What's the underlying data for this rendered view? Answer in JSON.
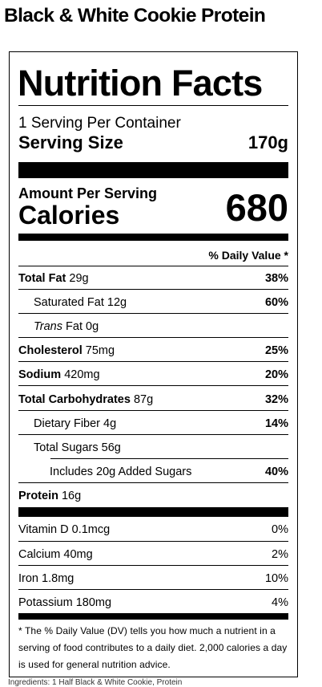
{
  "product_title": "Black & White Cookie Protein",
  "label": {
    "title": "Nutrition Facts",
    "servings_per_container": "1 Serving Per Container",
    "serving_size_label": "Serving Size",
    "serving_size_value": "170g",
    "amount_per_serving": "Amount Per Serving",
    "calories_label": "Calories",
    "calories_value": "680",
    "daily_value_header": "% Daily Value *",
    "nutrients": [
      {
        "name": "Total Fat",
        "amount": "29g",
        "dv": "38%"
      },
      {
        "name": "Saturated Fat",
        "amount": "12g",
        "dv": "60%"
      },
      {
        "name": "Trans",
        "name_suffix": "Fat",
        "amount": "0g",
        "dv": ""
      },
      {
        "name": "Cholesterol",
        "amount": "75mg",
        "dv": "25%"
      },
      {
        "name": "Sodium",
        "amount": "420mg",
        "dv": "20%"
      },
      {
        "name": "Total Carbohydrates",
        "amount": "87g",
        "dv": "32%"
      },
      {
        "name": "Dietary Fiber",
        "amount": "4g",
        "dv": "14%"
      },
      {
        "name": "Total Sugars",
        "amount": "56g",
        "dv": ""
      },
      {
        "name": "Includes 20g Added Sugars",
        "amount": "",
        "dv": "40%"
      },
      {
        "name": "Protein",
        "amount": "16g",
        "dv": ""
      }
    ],
    "vitamins": [
      {
        "name": "Vitamin D",
        "amount": "0.1mcg",
        "dv": "0%"
      },
      {
        "name": "Calcium",
        "amount": "40mg",
        "dv": "2%"
      },
      {
        "name": "Iron",
        "amount": "1.8mg",
        "dv": "10%"
      },
      {
        "name": "Potassium",
        "amount": "180mg",
        "dv": "4%"
      }
    ],
    "footnote": "* The % Daily Value (DV) tells you how much a nutrient in a serving of food contributes to a daily diet. 2,000 calories a day is used for general nutrition advice."
  },
  "cutoff_text": "Ingredients: 1 Half Black & White Cookie, Protein"
}
